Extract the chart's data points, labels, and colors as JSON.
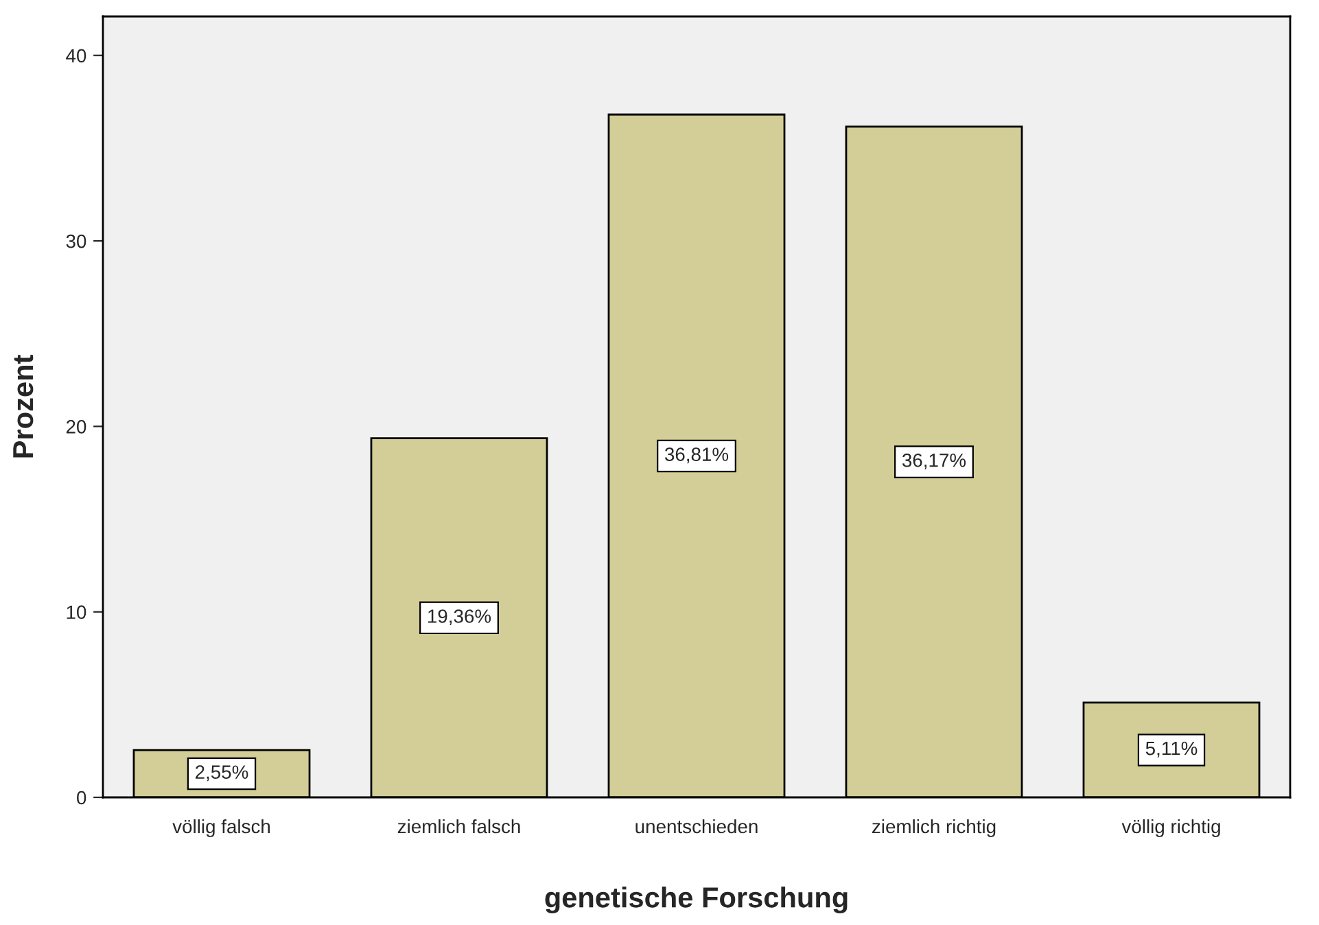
{
  "chart_data": {
    "type": "bar",
    "xlabel": "genetische Forschung",
    "ylabel": "Prozent",
    "categories": [
      "völlig falsch",
      "ziemlich falsch",
      "unentschieden",
      "ziemlich richtig",
      "völlig richtig"
    ],
    "values": [
      2.55,
      19.36,
      36.81,
      36.17,
      5.11
    ],
    "value_labels": [
      "2,55%",
      "19,36%",
      "36,81%",
      "36,17%",
      "5,11%"
    ],
    "color": "#d3ce97",
    "ylim": [
      0,
      42.1
    ],
    "yticks": [
      0,
      10,
      20,
      30,
      40
    ],
    "grid": false,
    "legend": false
  }
}
